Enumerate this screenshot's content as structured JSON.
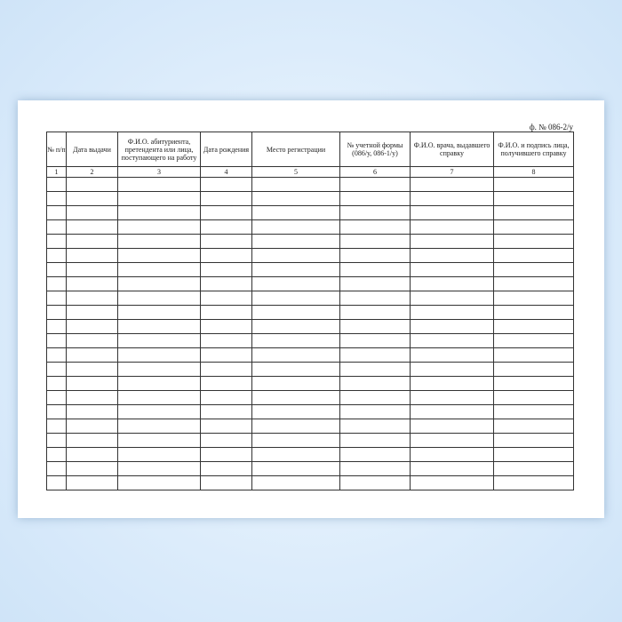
{
  "form_number": "ф. № 086-2/у",
  "columns": [
    {
      "header": "№ п/п",
      "number": "1"
    },
    {
      "header": "Дата выдачи",
      "number": "2"
    },
    {
      "header": "Ф.И.О. абитуриента, претендента или лица, поступающего на работу",
      "number": "3"
    },
    {
      "header": "Дата рождения",
      "number": "4"
    },
    {
      "header": "Место регистрации",
      "number": "5"
    },
    {
      "header": "№ учетной формы (086/у, 086-1/у)",
      "number": "6"
    },
    {
      "header": "Ф.И.О. врача, выдавшего справку",
      "number": "7"
    },
    {
      "header": "Ф.И.О. и подпись лица, получившего справку",
      "number": "8"
    }
  ],
  "empty_rows": 22
}
